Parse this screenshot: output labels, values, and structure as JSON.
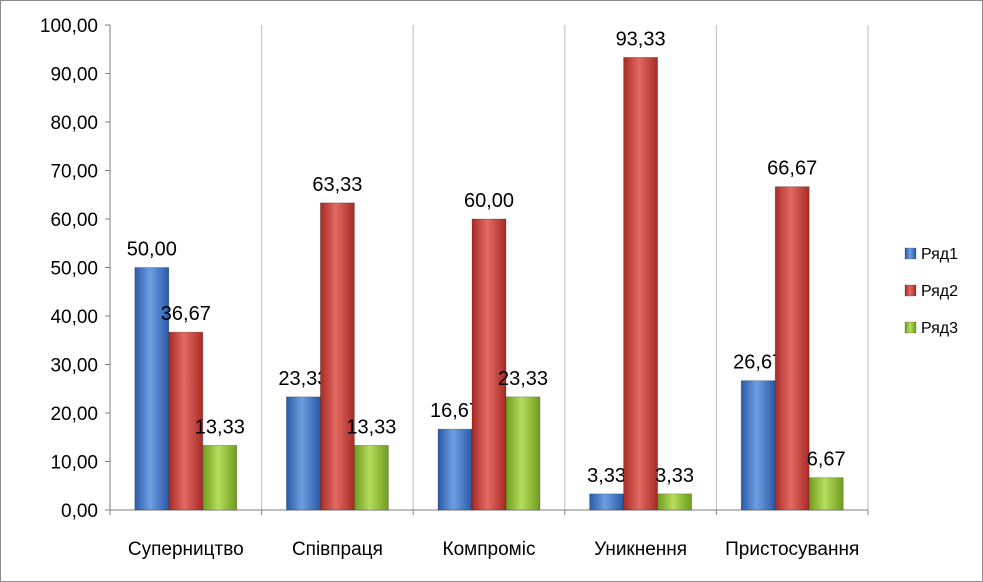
{
  "chart_data": {
    "type": "bar",
    "categories": [
      "Суперництво",
      "Співпраця",
      "Компроміс",
      "Уникнення",
      "Пристосування"
    ],
    "series": [
      {
        "name": "Ряд1",
        "values": [
          50.0,
          23.33,
          16.67,
          3.33,
          26.67
        ],
        "color": "#3a6fc4",
        "labels": [
          "50,00",
          "23,33",
          "16,67",
          "3,33",
          "26,67"
        ]
      },
      {
        "name": "Ряд2",
        "values": [
          36.67,
          63.33,
          60.0,
          93.33,
          66.67
        ],
        "color": "#c23a35",
        "labels": [
          "36,67",
          "63,33",
          "60,00",
          "93,33",
          "66,67"
        ]
      },
      {
        "name": "Ряд3",
        "values": [
          13.33,
          13.33,
          23.33,
          3.33,
          6.67
        ],
        "color": "#8dc035",
        "labels": [
          "13,33",
          "13,33",
          "23,33",
          "3,33",
          "6,67"
        ]
      }
    ],
    "ylim": [
      0,
      100
    ],
    "yticks": [
      "0,00",
      "10,00",
      "20,00",
      "30,00",
      "40,00",
      "50,00",
      "60,00",
      "70,00",
      "80,00",
      "90,00",
      "100,00"
    ],
    "grid": "vertical lines between categories",
    "legend": "right"
  }
}
